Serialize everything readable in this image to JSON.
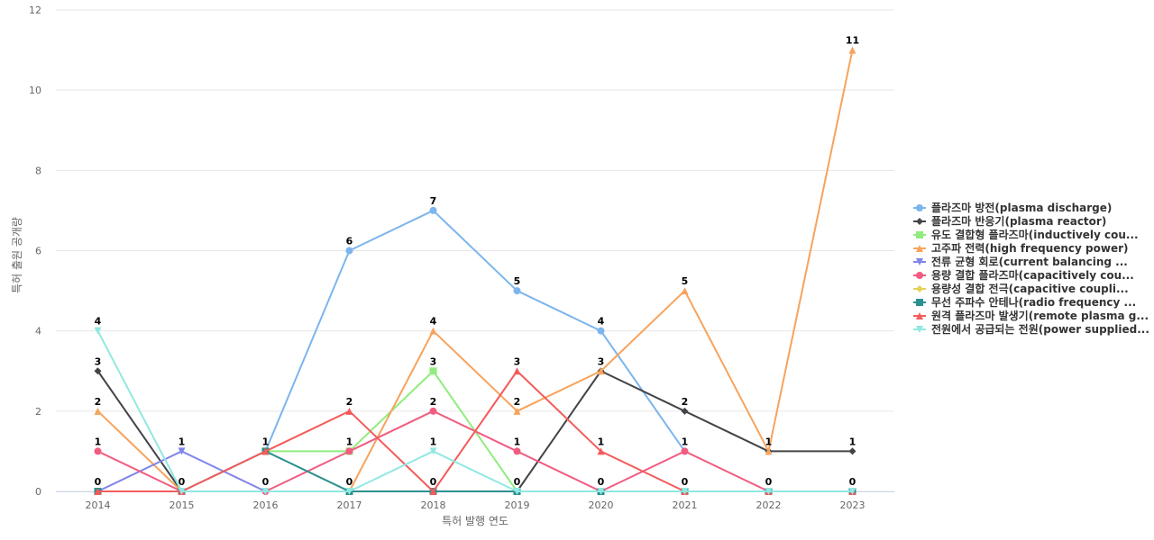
{
  "chart_data": {
    "type": "line",
    "title": "",
    "xlabel": "특허 발행 연도",
    "ylabel": "특허 출원 공개량",
    "x": [
      "2014",
      "2015",
      "2016",
      "2017",
      "2018",
      "2019",
      "2020",
      "2021",
      "2022",
      "2023"
    ],
    "ylim": [
      0,
      12
    ],
    "yticks": [
      0,
      2,
      4,
      6,
      8,
      10,
      12
    ],
    "grid": true,
    "legend_position": "right",
    "series": [
      {
        "name": "플라즈마 방전(plasma discharge)",
        "color": "#7cb5ec",
        "marker": "circle",
        "values": [
          null,
          null,
          1,
          6,
          7,
          5,
          4,
          1,
          null,
          null
        ]
      },
      {
        "name": "플라즈마 반응기(plasma reactor)",
        "color": "#434348",
        "marker": "diamond",
        "values": [
          3,
          0,
          null,
          null,
          null,
          0,
          3,
          2,
          1,
          1
        ]
      },
      {
        "name": "유도 결합형 플라즈마(inductively cou...",
        "color": "#90ed7d",
        "marker": "square",
        "values": [
          null,
          null,
          1,
          1,
          3,
          0,
          null,
          null,
          null,
          null
        ]
      },
      {
        "name": "고주파 전력(high frequency power)",
        "color": "#f7a35c",
        "marker": "triangle",
        "values": [
          2,
          0,
          null,
          0,
          4,
          2,
          3,
          5,
          1,
          11
        ]
      },
      {
        "name": "전류 균형 회로(current balancing ...",
        "color": "#8085e9",
        "marker": "triangle-down",
        "values": [
          0,
          1,
          0,
          null,
          null,
          null,
          null,
          null,
          null,
          null
        ]
      },
      {
        "name": "용량 결합 플라즈마(capacitively cou...",
        "color": "#f15c80",
        "marker": "circle",
        "values": [
          1,
          0,
          0,
          1,
          2,
          1,
          0,
          1,
          0,
          null
        ]
      },
      {
        "name": "용량성 결합 전극(capacitive coupli...",
        "color": "#e4d354",
        "marker": "diamond",
        "values": [
          null,
          null,
          null,
          null,
          null,
          null,
          null,
          null,
          null,
          null
        ]
      },
      {
        "name": "무선 주파수 안테나(radio frequency ...",
        "color": "#2b908f",
        "marker": "square",
        "values": [
          0,
          0,
          1,
          0,
          0,
          0,
          0,
          0,
          0,
          0
        ]
      },
      {
        "name": "원격 플라즈마 발생기(remote plasma g...",
        "color": "#f45b5b",
        "marker": "triangle",
        "values": [
          0,
          0,
          1,
          2,
          0,
          3,
          1,
          0,
          0,
          0
        ]
      },
      {
        "name": "전원에서 공급되는 전원(power supplied...",
        "color": "#91e8e1",
        "marker": "triangle-down",
        "values": [
          4,
          0,
          0,
          0,
          1,
          0,
          0,
          0,
          0,
          0
        ]
      }
    ],
    "data_labels": [
      {
        "x": "2014",
        "y": 4,
        "text": "4"
      },
      {
        "x": "2014",
        "y": 3,
        "text": "3"
      },
      {
        "x": "2014",
        "y": 2,
        "text": "2"
      },
      {
        "x": "2014",
        "y": 1,
        "text": "1"
      },
      {
        "x": "2014",
        "y": 0,
        "text": "0"
      },
      {
        "x": "2015",
        "y": 1,
        "text": "1"
      },
      {
        "x": "2015",
        "y": 0,
        "text": "0"
      },
      {
        "x": "2016",
        "y": 1,
        "text": "1"
      },
      {
        "x": "2016",
        "y": 0,
        "text": "0"
      },
      {
        "x": "2017",
        "y": 6,
        "text": "6"
      },
      {
        "x": "2017",
        "y": 2,
        "text": "2"
      },
      {
        "x": "2017",
        "y": 1,
        "text": "1"
      },
      {
        "x": "2017",
        "y": 0,
        "text": "0"
      },
      {
        "x": "2018",
        "y": 7,
        "text": "7"
      },
      {
        "x": "2018",
        "y": 4,
        "text": "4"
      },
      {
        "x": "2018",
        "y": 3,
        "text": "3"
      },
      {
        "x": "2018",
        "y": 2,
        "text": "2"
      },
      {
        "x": "2018",
        "y": 1,
        "text": "1"
      },
      {
        "x": "2018",
        "y": 0,
        "text": "0"
      },
      {
        "x": "2019",
        "y": 5,
        "text": "5"
      },
      {
        "x": "2019",
        "y": 3,
        "text": "3"
      },
      {
        "x": "2019",
        "y": 2,
        "text": "2"
      },
      {
        "x": "2019",
        "y": 1,
        "text": "1"
      },
      {
        "x": "2019",
        "y": 0,
        "text": "0"
      },
      {
        "x": "2020",
        "y": 4,
        "text": "4"
      },
      {
        "x": "2020",
        "y": 3,
        "text": "3"
      },
      {
        "x": "2020",
        "y": 1,
        "text": "1"
      },
      {
        "x": "2020",
        "y": 0,
        "text": "0"
      },
      {
        "x": "2021",
        "y": 5,
        "text": "5"
      },
      {
        "x": "2021",
        "y": 2,
        "text": "2"
      },
      {
        "x": "2021",
        "y": 1,
        "text": "1"
      },
      {
        "x": "2021",
        "y": 0,
        "text": "0"
      },
      {
        "x": "2022",
        "y": 1,
        "text": "1"
      },
      {
        "x": "2022",
        "y": 0,
        "text": "0"
      },
      {
        "x": "2023",
        "y": 11,
        "text": "11"
      },
      {
        "x": "2023",
        "y": 1,
        "text": "1"
      },
      {
        "x": "2023",
        "y": 0,
        "text": "0"
      }
    ]
  }
}
